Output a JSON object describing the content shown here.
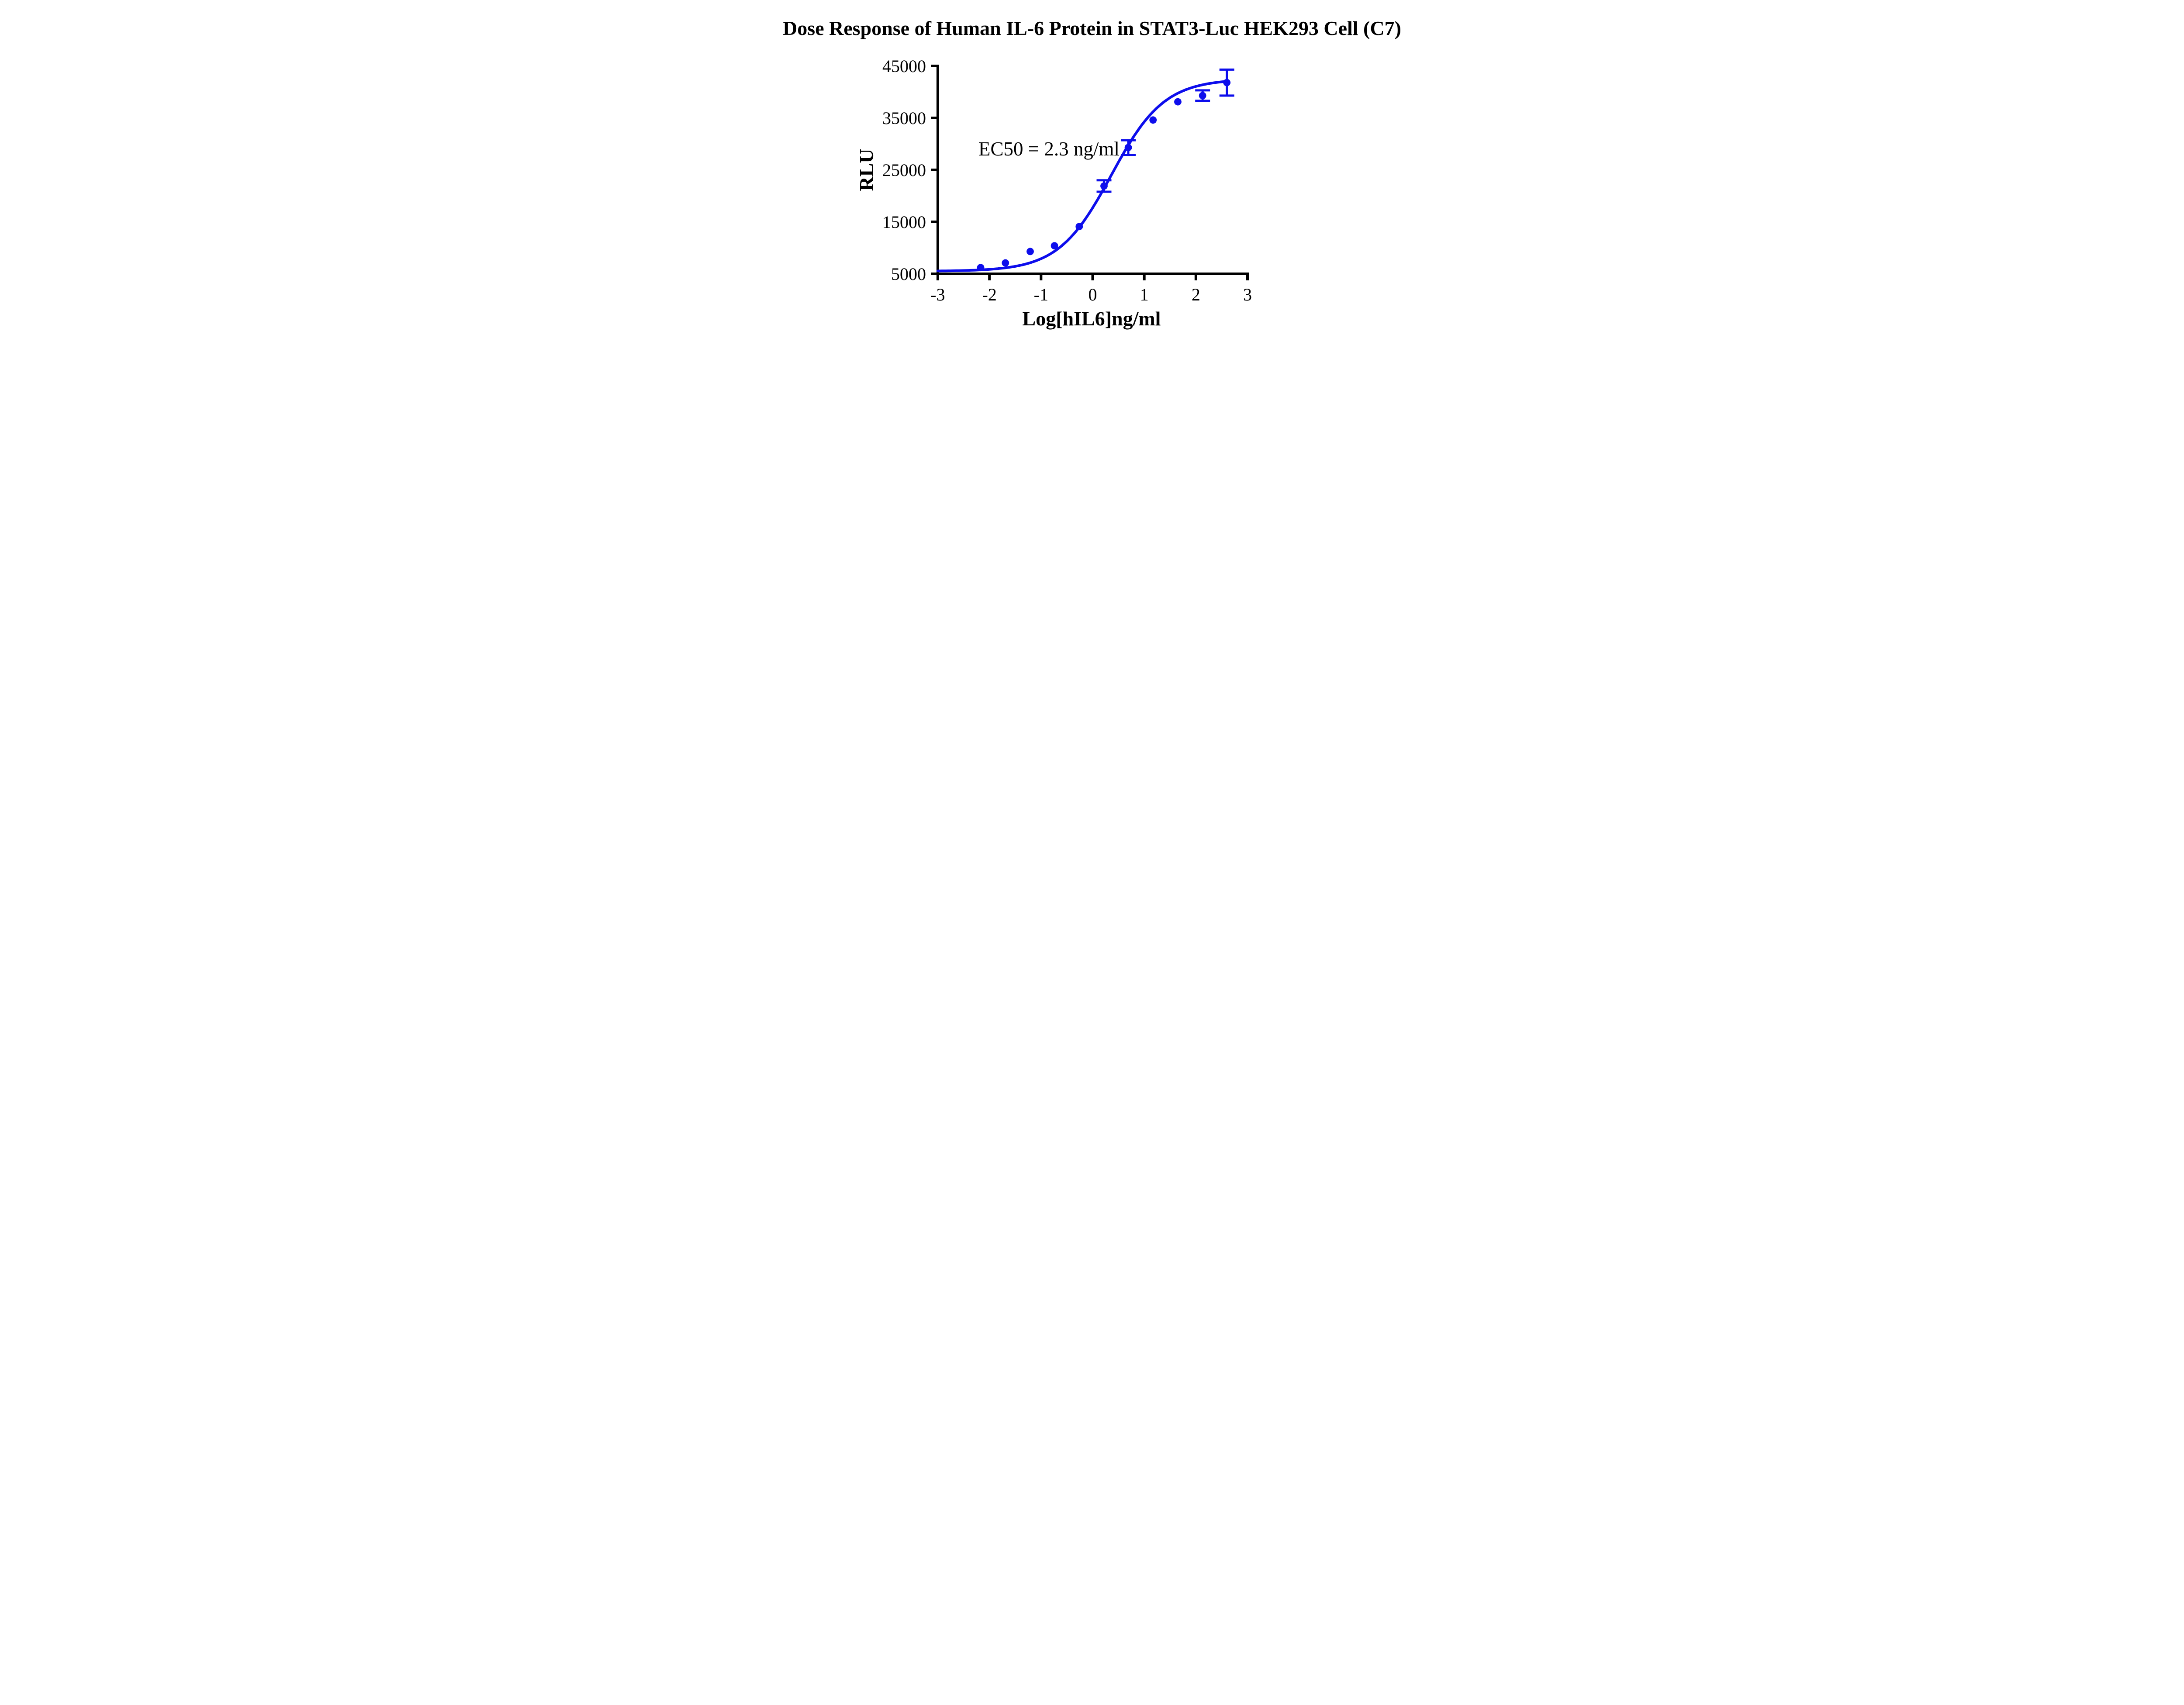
{
  "page": {
    "background": "#ffffff"
  },
  "colors": {
    "series": "#0D0DEC",
    "axis": "#000000",
    "text": "#000000",
    "background": "#ffffff"
  },
  "chart_data": {
    "type": "scatter",
    "title": "Dose Response of Human IL-6 Protein in STAT3-Luc HEK293 Cell (C7)",
    "xlabel": "Log[hIL6]ng/ml",
    "ylabel": "RLU",
    "annotation": "EC50 = 2.3 ng/ml",
    "ec50_ng_ml": 2.3,
    "xlim": [
      -3,
      3
    ],
    "ylim": [
      5000,
      45000
    ],
    "x_ticks": [
      -3,
      -2,
      -1,
      0,
      1,
      2,
      3
    ],
    "y_ticks": [
      5000,
      15000,
      25000,
      35000,
      45000
    ],
    "grid": false,
    "legend": "none",
    "points": [
      {
        "x": -2.17,
        "y": 6200,
        "err": 0
      },
      {
        "x": -1.69,
        "y": 7100,
        "err": 0
      },
      {
        "x": -1.21,
        "y": 9300,
        "err": 0
      },
      {
        "x": -0.74,
        "y": 10400,
        "err": 0
      },
      {
        "x": -0.26,
        "y": 14100,
        "err": 0
      },
      {
        "x": 0.22,
        "y": 21900,
        "err": 1100
      },
      {
        "x": 0.69,
        "y": 29300,
        "err": 1400
      },
      {
        "x": 1.17,
        "y": 34600,
        "err": 0
      },
      {
        "x": 1.65,
        "y": 38100,
        "err": 0
      },
      {
        "x": 2.13,
        "y": 39300,
        "err": 1000
      },
      {
        "x": 2.6,
        "y": 41800,
        "err": 2500
      }
    ],
    "fit_curve": {
      "model": "four_parameter_logistic",
      "bottom": 5500,
      "top": 42500,
      "log_ec50": 0.362,
      "hill_slope": 0.85,
      "x_min": -3,
      "x_max": 2.6
    }
  }
}
